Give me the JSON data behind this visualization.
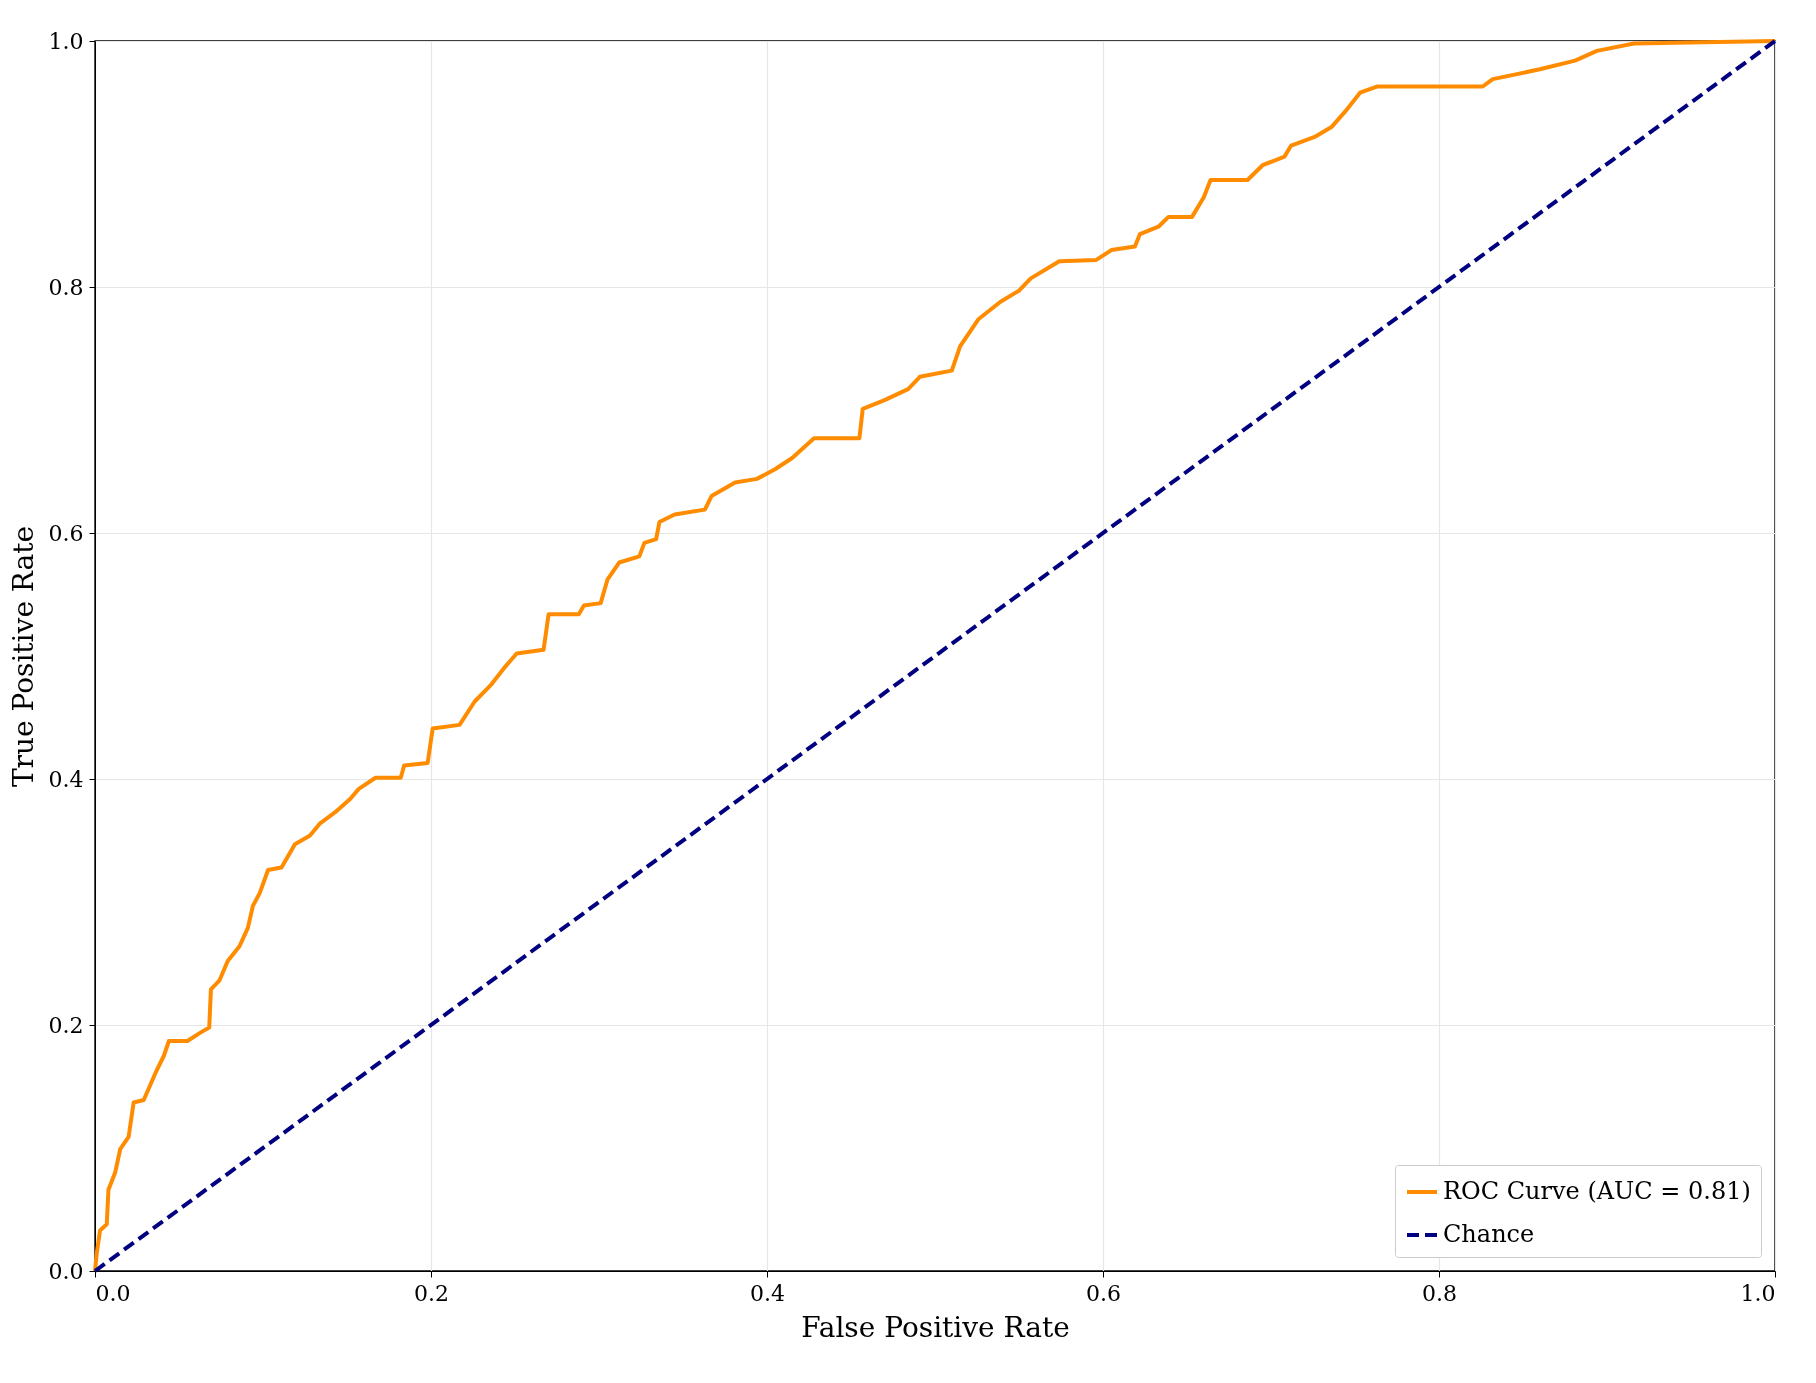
{
  "chart_data": {
    "type": "line",
    "xlabel": "False Positive Rate",
    "ylabel": "True Positive Rate",
    "xlim": [
      0,
      1
    ],
    "ylim": [
      0,
      1
    ],
    "xticks": [
      {
        "value": 0,
        "label": "0.0"
      },
      {
        "value": 0.2,
        "label": "0.2"
      },
      {
        "value": 0.4,
        "label": "0.4"
      },
      {
        "value": 0.6,
        "label": "0.6"
      },
      {
        "value": 0.8,
        "label": "0.8"
      },
      {
        "value": 1,
        "label": "1.0"
      }
    ],
    "yticks": [
      {
        "value": 0,
        "label": "0.0"
      },
      {
        "value": 0.2,
        "label": "0.2"
      },
      {
        "value": 0.4,
        "label": "0.4"
      },
      {
        "value": 0.6,
        "label": "0.6"
      },
      {
        "value": 0.8,
        "label": "0.8"
      },
      {
        "value": 1,
        "label": "1.0"
      }
    ],
    "grid": true,
    "legend": "bottom right",
    "series": [
      {
        "name": "ROC Curve (AUC = 0.81)",
        "color": "#ff8c00",
        "line_style": "solid",
        "x": [
          0,
          0.001,
          0.003,
          0.007,
          0.008,
          0.012,
          0.015,
          0.02,
          0.023,
          0.029,
          0.036,
          0.041,
          0.044,
          0.055,
          0.063,
          0.068,
          0.069,
          0.074,
          0.079,
          0.086,
          0.091,
          0.094,
          0.098,
          0.103,
          0.111,
          0.119,
          0.128,
          0.134,
          0.143,
          0.152,
          0.157,
          0.167,
          0.182,
          0.184,
          0.198,
          0.201,
          0.217,
          0.226,
          0.236,
          0.244,
          0.251,
          0.267,
          0.27,
          0.288,
          0.291,
          0.301,
          0.305,
          0.312,
          0.324,
          0.327,
          0.334,
          0.336,
          0.345,
          0.363,
          0.367,
          0.381,
          0.394,
          0.405,
          0.415,
          0.428,
          0.455,
          0.457,
          0.47,
          0.484,
          0.491,
          0.51,
          0.515,
          0.526,
          0.539,
          0.55,
          0.557,
          0.574,
          0.596,
          0.605,
          0.619,
          0.622,
          0.633,
          0.639,
          0.653,
          0.66,
          0.664,
          0.686,
          0.695,
          0.708,
          0.712,
          0.726,
          0.736,
          0.745,
          0.753,
          0.763,
          0.826,
          0.832,
          0.86,
          0.881,
          0.894,
          0.916,
          1
        ],
        "values": [
          0,
          0.014,
          0.033,
          0.038,
          0.066,
          0.08,
          0.099,
          0.109,
          0.137,
          0.139,
          0.161,
          0.175,
          0.187,
          0.187,
          0.194,
          0.198,
          0.229,
          0.236,
          0.252,
          0.264,
          0.279,
          0.297,
          0.307,
          0.326,
          0.328,
          0.347,
          0.354,
          0.364,
          0.373,
          0.384,
          0.392,
          0.401,
          0.401,
          0.411,
          0.413,
          0.441,
          0.444,
          0.463,
          0.477,
          0.491,
          0.502,
          0.505,
          0.534,
          0.534,
          0.541,
          0.543,
          0.562,
          0.576,
          0.581,
          0.592,
          0.595,
          0.609,
          0.615,
          0.619,
          0.63,
          0.641,
          0.644,
          0.652,
          0.661,
          0.677,
          0.677,
          0.701,
          0.708,
          0.717,
          0.727,
          0.732,
          0.752,
          0.774,
          0.788,
          0.797,
          0.807,
          0.821,
          0.822,
          0.83,
          0.833,
          0.843,
          0.849,
          0.857,
          0.857,
          0.873,
          0.887,
          0.887,
          0.899,
          0.906,
          0.915,
          0.922,
          0.93,
          0.944,
          0.958,
          0.963,
          0.963,
          0.969,
          0.977,
          0.984,
          0.992,
          0.998,
          1
        ]
      },
      {
        "name": "Chance",
        "color": "#000080",
        "line_style": "dashed",
        "x": [
          0,
          1
        ],
        "values": [
          0,
          1
        ]
      }
    ]
  }
}
